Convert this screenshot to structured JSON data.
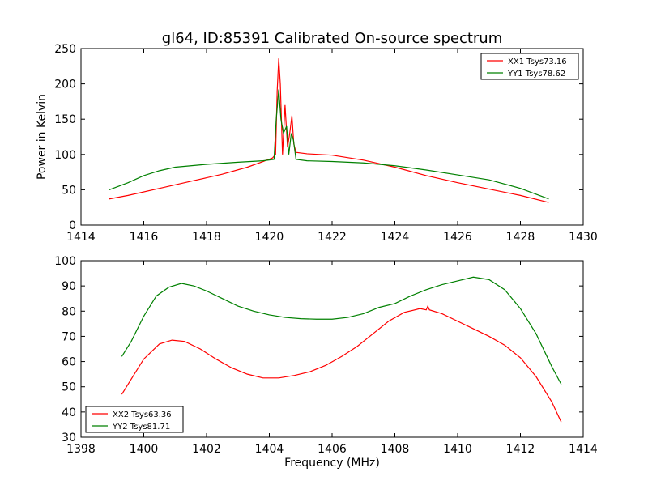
{
  "figure": {
    "title": "gl64, ID:85391 Calibrated On-source spectrum",
    "xlabel": "Frequency (MHz)",
    "colors": {
      "red": "#ff0000",
      "green": "#008000"
    }
  },
  "chart_data": [
    {
      "type": "line",
      "ylabel": "Power in Kelvin",
      "xlim": [
        1414,
        1430
      ],
      "ylim": [
        0,
        250
      ],
      "xticks": [
        "1414",
        "1416",
        "1418",
        "1420",
        "1422",
        "1424",
        "1426",
        "1428",
        "1430"
      ],
      "yticks": [
        "0",
        "50",
        "100",
        "150",
        "200",
        "250"
      ],
      "legend_position": "top-right",
      "grid": false,
      "series": [
        {
          "name": "XX1 Tsys73.16",
          "color": "#ff0000",
          "points": [
            [
              1414.9,
              37
            ],
            [
              1415.5,
              42
            ],
            [
              1416.5,
              52
            ],
            [
              1417.5,
              62
            ],
            [
              1418.5,
              72
            ],
            [
              1419.3,
              82
            ],
            [
              1419.8,
              90
            ],
            [
              1420.1,
              95
            ],
            [
              1420.2,
              100
            ],
            [
              1420.25,
              190
            ],
            [
              1420.3,
              236
            ],
            [
              1420.35,
              200
            ],
            [
              1420.42,
              100
            ],
            [
              1420.5,
              170
            ],
            [
              1420.58,
              110
            ],
            [
              1420.65,
              130
            ],
            [
              1420.72,
              155
            ],
            [
              1420.78,
              115
            ],
            [
              1420.85,
              103
            ],
            [
              1421.2,
              101
            ],
            [
              1422.0,
              99
            ],
            [
              1423.0,
              92
            ],
            [
              1424.0,
              82
            ],
            [
              1425.0,
              70
            ],
            [
              1426.0,
              60
            ],
            [
              1427.0,
              51
            ],
            [
              1428.0,
              42
            ],
            [
              1428.9,
              32
            ]
          ]
        },
        {
          "name": "YY1 Tsys78.62",
          "color": "#008000",
          "points": [
            [
              1414.9,
              50
            ],
            [
              1415.5,
              60
            ],
            [
              1416.0,
              70
            ],
            [
              1416.5,
              77
            ],
            [
              1417.0,
              82
            ],
            [
              1418.0,
              86
            ],
            [
              1419.0,
              89
            ],
            [
              1419.8,
              91
            ],
            [
              1420.15,
              93
            ],
            [
              1420.22,
              150
            ],
            [
              1420.3,
              192
            ],
            [
              1420.37,
              150
            ],
            [
              1420.45,
              130
            ],
            [
              1420.55,
              140
            ],
            [
              1420.62,
              100
            ],
            [
              1420.7,
              130
            ],
            [
              1420.77,
              120
            ],
            [
              1420.85,
              93
            ],
            [
              1421.2,
              91
            ],
            [
              1422.0,
              90
            ],
            [
              1423.0,
              88
            ],
            [
              1424.0,
              84
            ],
            [
              1425.0,
              78
            ],
            [
              1426.0,
              71
            ],
            [
              1427.0,
              64
            ],
            [
              1428.0,
              52
            ],
            [
              1428.9,
              37
            ]
          ]
        }
      ]
    },
    {
      "type": "line",
      "xlabel": "Frequency (MHz)",
      "xlim": [
        1398,
        1414
      ],
      "ylim": [
        30,
        100
      ],
      "xticks": [
        "1398",
        "1400",
        "1402",
        "1404",
        "1406",
        "1408",
        "1410",
        "1412",
        "1414"
      ],
      "yticks": [
        "30",
        "40",
        "50",
        "60",
        "70",
        "80",
        "90",
        "100"
      ],
      "legend_position": "bottom-left",
      "grid": false,
      "series": [
        {
          "name": "XX2 Tsys63.36",
          "color": "#ff0000",
          "points": [
            [
              1399.3,
              47
            ],
            [
              1399.6,
              53
            ],
            [
              1400.0,
              61
            ],
            [
              1400.5,
              67
            ],
            [
              1400.9,
              68.5
            ],
            [
              1401.3,
              68
            ],
            [
              1401.8,
              65
            ],
            [
              1402.3,
              61
            ],
            [
              1402.8,
              57.5
            ],
            [
              1403.3,
              55
            ],
            [
              1403.8,
              53.5
            ],
            [
              1404.3,
              53.5
            ],
            [
              1404.8,
              54.5
            ],
            [
              1405.3,
              56
            ],
            [
              1405.8,
              58.5
            ],
            [
              1406.3,
              62
            ],
            [
              1406.8,
              66
            ],
            [
              1407.3,
              71
            ],
            [
              1407.8,
              76
            ],
            [
              1408.3,
              79.5
            ],
            [
              1408.8,
              81
            ],
            [
              1409.0,
              80.5
            ],
            [
              1409.05,
              82
            ],
            [
              1409.1,
              80.5
            ],
            [
              1409.5,
              79
            ],
            [
              1410.0,
              76
            ],
            [
              1410.5,
              73
            ],
            [
              1411.0,
              70
            ],
            [
              1411.5,
              66.5
            ],
            [
              1412.0,
              61.5
            ],
            [
              1412.5,
              54
            ],
            [
              1413.0,
              44
            ],
            [
              1413.3,
              36
            ]
          ]
        },
        {
          "name": "YY2 Tsys81.71",
          "color": "#008000",
          "points": [
            [
              1399.3,
              62
            ],
            [
              1399.6,
              68
            ],
            [
              1400.0,
              78
            ],
            [
              1400.4,
              86
            ],
            [
              1400.8,
              89.5
            ],
            [
              1401.2,
              91
            ],
            [
              1401.6,
              90
            ],
            [
              1402.0,
              88
            ],
            [
              1402.5,
              85
            ],
            [
              1403.0,
              82
            ],
            [
              1403.5,
              80
            ],
            [
              1404.0,
              78.5
            ],
            [
              1404.5,
              77.5
            ],
            [
              1405.0,
              77
            ],
            [
              1405.5,
              76.8
            ],
            [
              1406.0,
              76.8
            ],
            [
              1406.5,
              77.5
            ],
            [
              1407.0,
              79
            ],
            [
              1407.5,
              81.5
            ],
            [
              1408.0,
              83
            ],
            [
              1408.5,
              86
            ],
            [
              1409.0,
              88.5
            ],
            [
              1409.5,
              90.5
            ],
            [
              1410.0,
              92
            ],
            [
              1410.5,
              93.5
            ],
            [
              1411.0,
              92.5
            ],
            [
              1411.5,
              88.5
            ],
            [
              1412.0,
              81
            ],
            [
              1412.5,
              71
            ],
            [
              1413.0,
              58
            ],
            [
              1413.3,
              51
            ]
          ]
        }
      ]
    }
  ]
}
